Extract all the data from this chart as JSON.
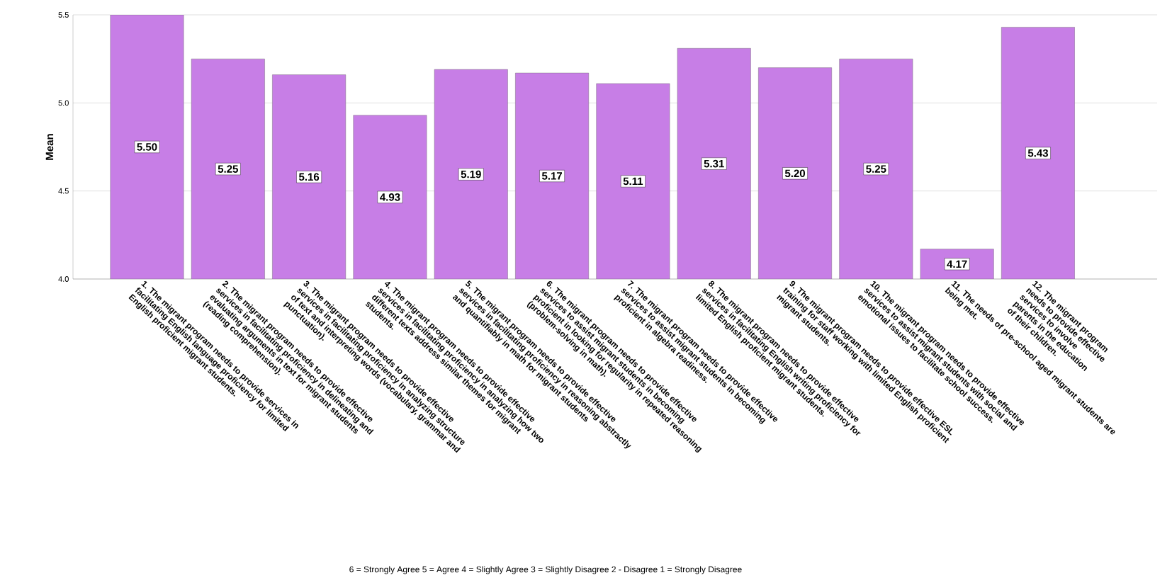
{
  "chart_data": {
    "type": "bar",
    "ylabel": "Mean",
    "categories": [
      "1. The migrant program needs to provide services in facilitating English language proficiency for limited English proficient migrant students.",
      "2. The migrant program needs to provide effective services in facilitating proficiency in delineating and evaluating arguments in text for migrant students (reading comprehension).",
      "3. The migrant program needs to provide effective services in facilitating proficiency in analyzing structure of text and interpreting words (vocabulary, grammar and punctuation).",
      "4. The migrant program needs to provide effective services in facilitating proficiency in analyzing how two different texts address similar themes for migrant students.",
      "5. The migrant program needs to provide effective services in facilitating proficiency in reasoning abstractly and quantifiably in math for migrant students",
      "6. The migrant program needs to provide effective services to assist migrant students in becoming proficient in looking for regularity in repeated reasoning (problem-solving in math).",
      "7. The migrant program needs to provide effective services to assist migrant students in becoming proficient in algebra readiness.",
      "8. The migrant program needs to provide effective services in facilitating English writing proficiency for limited English proficient migrant students.",
      "9. The migrant program needs to provide effective ESL training for staff working with limited English proficient migrant students.",
      "10. The migrant program needs to provide effective services to assist migrant students with social and emotional issues to facilitate school success.",
      "11. The needs of pre-school aged migrant students are being met.",
      "12. The migrant program needs to provide effective services to involve parents in the education of their children."
    ],
    "values": [
      5.5,
      5.25,
      5.16,
      4.93,
      5.19,
      5.17,
      5.11,
      5.31,
      5.2,
      5.25,
      4.17,
      5.43
    ],
    "value_labels": [
      "5.50",
      "5.25",
      "5.16",
      "4.93",
      "5.19",
      "5.17",
      "5.11",
      "5.31",
      "5.20",
      "5.25",
      "4.17",
      "5.43"
    ],
    "color": "#c77ee6",
    "ylim": [
      4.0,
      5.5
    ],
    "yticks": [
      {
        "value": 4.0,
        "label": "4.0"
      },
      {
        "value": 4.5,
        "label": "4.5"
      },
      {
        "value": 5.0,
        "label": "5.0"
      },
      {
        "value": 5.5,
        "label": "5.5"
      }
    ],
    "grid": "y",
    "annotations": [
      "6 = Strongly Agree   5 = Agree  4 = Slightly Agree   3 = Slightly Disagree   2 - Disagree   1 = Strongly Disagree"
    ]
  }
}
